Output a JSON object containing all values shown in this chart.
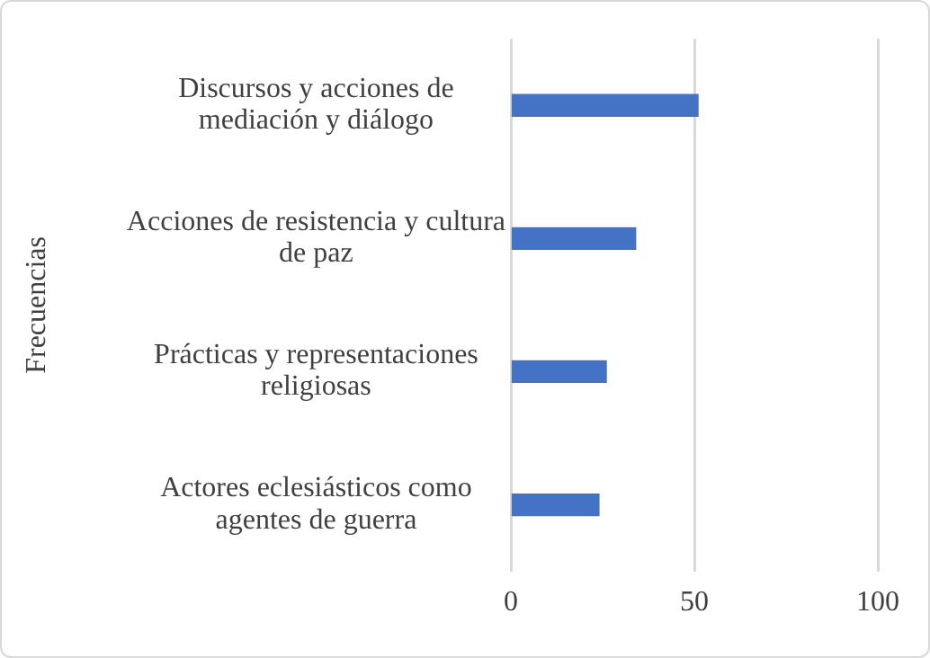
{
  "chart_data": {
    "type": "bar",
    "orientation": "horizontal",
    "ylabel": "Frecuencias",
    "categories": [
      "Discursos y acciones de mediación y diálogo",
      "Acciones de resistencia y cultura de paz",
      "Prácticas y representaciones religiosas",
      "Actores eclesiásticos como agentes de guerra"
    ],
    "values": [
      51,
      34,
      26,
      24
    ],
    "color": "#4472c4",
    "xlim": [
      0,
      100
    ],
    "xticks": [
      0,
      50,
      100
    ],
    "grid": "x",
    "legend": false
  }
}
